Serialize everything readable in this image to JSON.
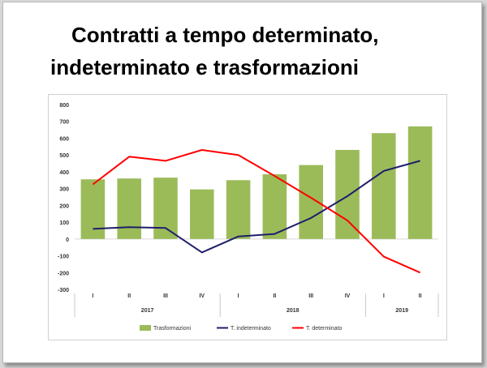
{
  "title": {
    "line1": "Contratti a tempo determinato,",
    "line2": "indeterminato e trasformazioni"
  },
  "chart_data": {
    "type": "bar",
    "categories": [
      "I",
      "II",
      "III",
      "IV",
      "I",
      "II",
      "III",
      "IV",
      "I",
      "II"
    ],
    "groups": [
      {
        "label": "2017",
        "count": 4
      },
      {
        "label": "2018",
        "count": 4
      },
      {
        "label": "2019",
        "count": 2
      }
    ],
    "yticks": [
      800,
      700,
      600,
      500,
      400,
      300,
      200,
      100,
      0,
      -100,
      -200,
      -300
    ],
    "ylim": [
      -300,
      800
    ],
    "grid": false,
    "legend_position": "bottom",
    "series": [
      {
        "name": "Trasformazioni",
        "type": "bar",
        "color": "#9bbb59",
        "values": [
          355,
          360,
          365,
          295,
          350,
          385,
          440,
          530,
          630,
          670
        ]
      },
      {
        "name": "T. indeterminato",
        "type": "line",
        "color": "#1f1f6b",
        "values": [
          60,
          70,
          65,
          -80,
          15,
          30,
          125,
          255,
          405,
          465
        ]
      },
      {
        "name": "T. determinato",
        "type": "line",
        "color": "#ff0000",
        "values": [
          325,
          490,
          465,
          530,
          500,
          375,
          245,
          110,
          -105,
          -200
        ]
      }
    ]
  }
}
